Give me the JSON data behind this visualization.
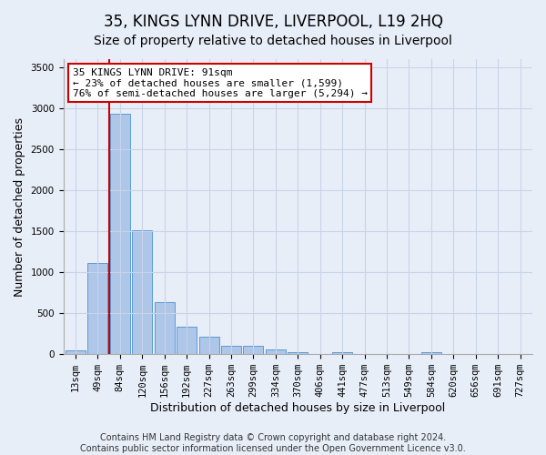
{
  "title": "35, KINGS LYNN DRIVE, LIVERPOOL, L19 2HQ",
  "subtitle": "Size of property relative to detached houses in Liverpool",
  "xlabel": "Distribution of detached houses by size in Liverpool",
  "ylabel": "Number of detached properties",
  "footer_line1": "Contains HM Land Registry data © Crown copyright and database right 2024.",
  "footer_line2": "Contains public sector information licensed under the Open Government Licence v3.0.",
  "bar_labels": [
    "13sqm",
    "49sqm",
    "84sqm",
    "120sqm",
    "156sqm",
    "192sqm",
    "227sqm",
    "263sqm",
    "299sqm",
    "334sqm",
    "370sqm",
    "406sqm",
    "441sqm",
    "477sqm",
    "513sqm",
    "549sqm",
    "584sqm",
    "620sqm",
    "656sqm",
    "691sqm",
    "727sqm"
  ],
  "bar_values": [
    50,
    1110,
    2930,
    1510,
    640,
    340,
    215,
    100,
    100,
    55,
    30,
    0,
    30,
    0,
    0,
    0,
    20,
    0,
    0,
    0,
    0
  ],
  "bar_color": "#aec6e8",
  "bar_edge_color": "#5b9bd5",
  "vline_bin_index": 2,
  "vline_color": "#cc0000",
  "annotation_text": "35 KINGS LYNN DRIVE: 91sqm\n← 23% of detached houses are smaller (1,599)\n76% of semi-detached houses are larger (5,294) →",
  "annotation_box_color": "#ffffff",
  "annotation_box_edge": "#cc0000",
  "ylim": [
    0,
    3600
  ],
  "yticks": [
    0,
    500,
    1000,
    1500,
    2000,
    2500,
    3000,
    3500
  ],
  "grid_color": "#c8d4e8",
  "bg_color": "#e8eef8",
  "title_fontsize": 12,
  "subtitle_fontsize": 10,
  "axis_label_fontsize": 9,
  "tick_fontsize": 7.5,
  "footer_fontsize": 7
}
